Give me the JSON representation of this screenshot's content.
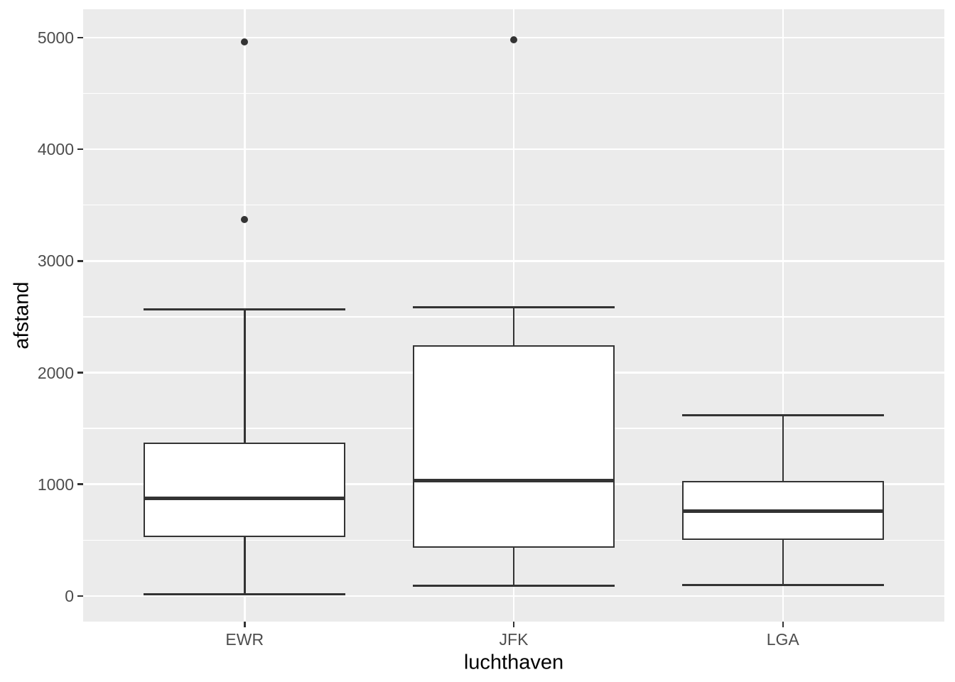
{
  "figure": {
    "background": "#FFFFFF",
    "panel_background": "#EBEBEB",
    "grid_color": "#FFFFFF",
    "box_line_color": "#333333",
    "box_fill_color": "#FFFFFF",
    "outlier_color": "#333333",
    "tick_mark_color": "#333333",
    "tick_label_color": "#4D4D4D",
    "axis_title_color": "#000000"
  },
  "chart_data": {
    "type": "boxplot",
    "title": "",
    "xlabel": "luchthaven",
    "ylabel": "afstand",
    "categories": [
      "EWR",
      "JFK",
      "LGA"
    ],
    "yticks": [
      0,
      1000,
      2000,
      3000,
      4000,
      5000
    ],
    "yminorticks": [
      500,
      1500,
      2500,
      3500,
      4500
    ],
    "ylim": [
      -230,
      5255
    ],
    "grid": "horizontal major+minor white lines on grey panel; one vertical white line per category",
    "legend": "none",
    "series": [
      {
        "name": "EWR",
        "whisker_low": 17,
        "q1": 529,
        "median": 872,
        "q3": 1372,
        "whisker_high": 2565,
        "outliers": [
          3370,
          4963
        ]
      },
      {
        "name": "JFK",
        "whisker_low": 94,
        "q1": 430,
        "median": 1030,
        "q3": 2248,
        "whisker_high": 2586,
        "outliers": [
          4983
        ]
      },
      {
        "name": "LGA",
        "whisker_low": 96,
        "q1": 502,
        "median": 762,
        "q3": 1030,
        "whisker_high": 1620,
        "outliers": []
      }
    ]
  }
}
